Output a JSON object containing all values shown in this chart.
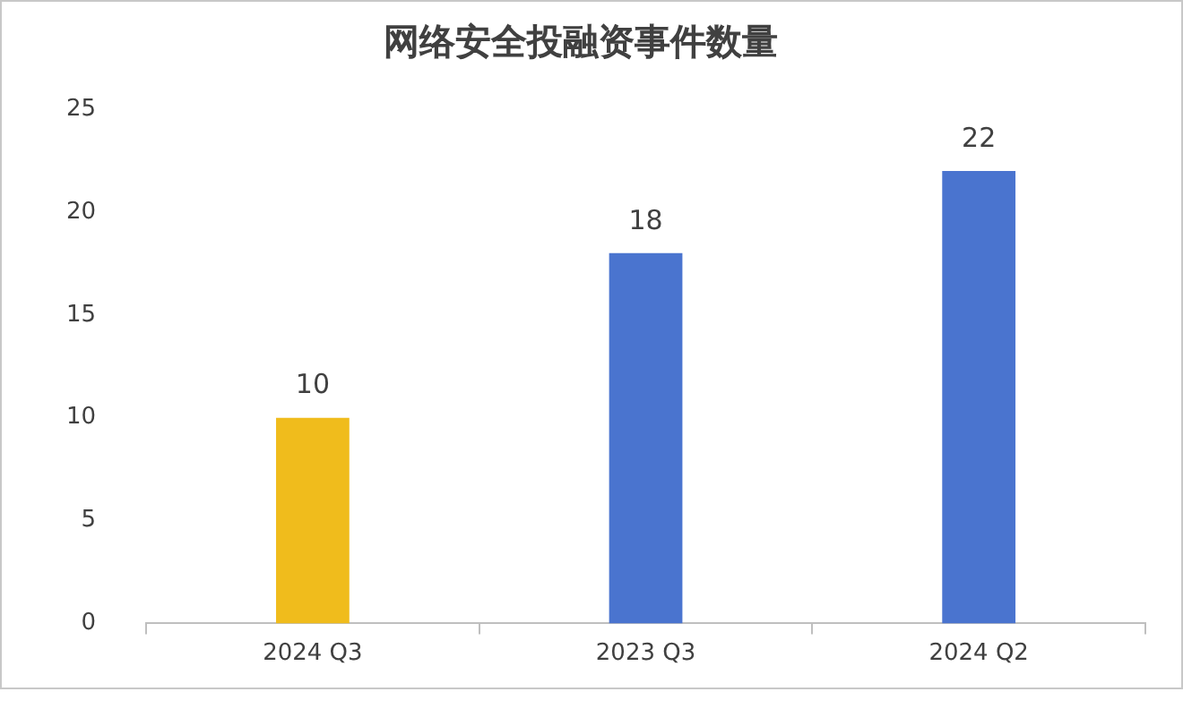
{
  "chart_data": {
    "type": "bar",
    "title": "网络安全投融资事件数量",
    "categories": [
      "2024 Q3",
      "2023 Q3",
      "2024 Q2"
    ],
    "values": [
      10,
      18,
      22
    ],
    "colors": [
      "#f0bc1c",
      "#4a74cf",
      "#4a74cf"
    ],
    "ylim": [
      0,
      25
    ],
    "yticks": [
      0,
      5,
      10,
      15,
      20,
      25
    ],
    "grid": false,
    "data_labels": true
  }
}
